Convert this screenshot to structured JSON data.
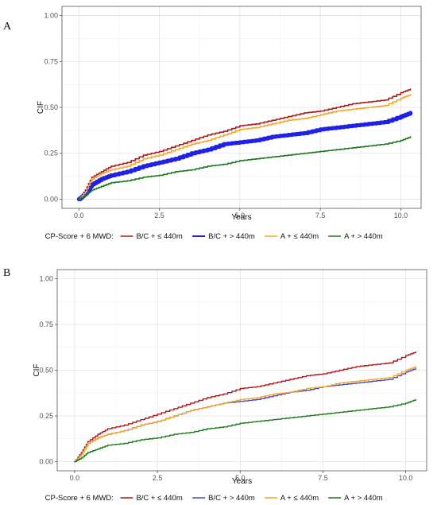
{
  "chart_data": [
    {
      "panel": "A",
      "type": "line",
      "xlabel": "Years",
      "ylabel": "CIF",
      "xlim": [
        0,
        10.5
      ],
      "ylim": [
        0,
        1.0
      ],
      "x_ticks": [
        "0.0",
        "2.5",
        "5.0",
        "7.5",
        "10.0"
      ],
      "y_ticks": [
        "0.00",
        "0.25",
        "0.50",
        "0.75",
        "1.00"
      ],
      "grid": true,
      "legend_title": "CP-Score + 6 MWD:",
      "legend_position": "bottom",
      "series": [
        {
          "name": "B/C + ≤ 440m",
          "color": "#b2181b",
          "width": 1.6,
          "x": [
            0,
            0.2,
            0.4,
            0.7,
            1.0,
            1.5,
            2.0,
            2.5,
            3.0,
            3.5,
            4.0,
            4.5,
            5.0,
            5.5,
            6.0,
            6.5,
            7.0,
            7.5,
            8.0,
            8.5,
            9.0,
            9.5,
            10.0,
            10.3
          ],
          "y": [
            0.0,
            0.05,
            0.12,
            0.15,
            0.18,
            0.2,
            0.24,
            0.26,
            0.29,
            0.32,
            0.35,
            0.37,
            0.4,
            0.41,
            0.43,
            0.45,
            0.47,
            0.48,
            0.5,
            0.52,
            0.53,
            0.54,
            0.58,
            0.6
          ]
        },
        {
          "name": "B/C + > 440m",
          "color": "#1f22e6",
          "width": 5,
          "x": [
            0,
            0.2,
            0.4,
            0.7,
            1.0,
            1.5,
            2.0,
            2.5,
            3.0,
            3.5,
            4.0,
            4.5,
            5.0,
            5.5,
            6.0,
            6.5,
            7.0,
            7.5,
            8.0,
            8.5,
            9.0,
            9.5,
            10.0,
            10.3
          ],
          "y": [
            0.0,
            0.03,
            0.08,
            0.11,
            0.13,
            0.15,
            0.18,
            0.2,
            0.22,
            0.25,
            0.27,
            0.3,
            0.31,
            0.32,
            0.34,
            0.35,
            0.36,
            0.38,
            0.39,
            0.4,
            0.41,
            0.42,
            0.45,
            0.47
          ]
        },
        {
          "name": "A + ≤ 440m",
          "color": "#f5a623",
          "width": 1.6,
          "x": [
            0,
            0.2,
            0.4,
            0.7,
            1.0,
            1.5,
            2.0,
            2.5,
            3.0,
            3.5,
            4.0,
            4.5,
            5.0,
            5.5,
            6.0,
            6.5,
            7.0,
            7.5,
            8.0,
            8.5,
            9.0,
            9.5,
            10.0,
            10.3
          ],
          "y": [
            0.0,
            0.04,
            0.11,
            0.14,
            0.16,
            0.18,
            0.22,
            0.24,
            0.27,
            0.3,
            0.32,
            0.35,
            0.38,
            0.39,
            0.41,
            0.43,
            0.44,
            0.46,
            0.48,
            0.49,
            0.5,
            0.51,
            0.55,
            0.57
          ]
        },
        {
          "name": "A + > 440m",
          "color": "#1b7a1b",
          "width": 1.6,
          "x": [
            0,
            0.2,
            0.4,
            0.7,
            1.0,
            1.5,
            2.0,
            2.5,
            3.0,
            3.5,
            4.0,
            4.5,
            5.0,
            5.5,
            6.0,
            6.5,
            7.0,
            7.5,
            8.0,
            8.5,
            9.0,
            9.5,
            10.0,
            10.3
          ],
          "y": [
            0.0,
            0.02,
            0.05,
            0.07,
            0.09,
            0.1,
            0.12,
            0.13,
            0.15,
            0.16,
            0.18,
            0.19,
            0.21,
            0.22,
            0.23,
            0.24,
            0.25,
            0.26,
            0.27,
            0.28,
            0.29,
            0.3,
            0.32,
            0.34
          ]
        }
      ]
    },
    {
      "panel": "B",
      "type": "line",
      "xlabel": "Years",
      "ylabel": "CIF",
      "xlim": [
        0,
        10.5
      ],
      "ylim": [
        0,
        1.0
      ],
      "x_ticks": [
        "0.0",
        "2.5",
        "5.0",
        "7.5",
        "10.0"
      ],
      "y_ticks": [
        "0.00",
        "0.25",
        "0.50",
        "0.75",
        "1.00"
      ],
      "grid": true,
      "legend_title": "CP-Score + 6 MWD:",
      "legend_position": "bottom",
      "series": [
        {
          "name": "B/C + ≤ 440m",
          "color": "#b2181b",
          "width": 1.4,
          "x": [
            0,
            0.2,
            0.4,
            0.7,
            1.0,
            1.5,
            2.0,
            2.5,
            3.0,
            3.5,
            4.0,
            4.5,
            5.0,
            5.5,
            6.0,
            6.5,
            7.0,
            7.5,
            8.0,
            8.5,
            9.0,
            9.5,
            10.0,
            10.3
          ],
          "y": [
            0.0,
            0.05,
            0.11,
            0.15,
            0.18,
            0.2,
            0.23,
            0.26,
            0.29,
            0.32,
            0.35,
            0.37,
            0.4,
            0.41,
            0.43,
            0.45,
            0.47,
            0.48,
            0.5,
            0.52,
            0.53,
            0.54,
            0.58,
            0.6
          ]
        },
        {
          "name": "B/C + > 440m",
          "color": "#4b4bd6",
          "width": 1.4,
          "x": [
            0,
            0.2,
            0.4,
            0.7,
            1.0,
            1.5,
            2.0,
            2.5,
            3.0,
            3.5,
            4.0,
            4.5,
            5.0,
            5.5,
            6.0,
            6.5,
            7.0,
            7.5,
            8.0,
            8.5,
            9.0,
            9.5,
            10.0,
            10.3
          ],
          "y": [
            0.0,
            0.04,
            0.1,
            0.13,
            0.15,
            0.17,
            0.2,
            0.22,
            0.25,
            0.28,
            0.3,
            0.32,
            0.33,
            0.34,
            0.36,
            0.38,
            0.39,
            0.41,
            0.42,
            0.43,
            0.44,
            0.45,
            0.49,
            0.51
          ]
        },
        {
          "name": "A + ≤ 440m",
          "color": "#f5a623",
          "width": 1.4,
          "x": [
            0,
            0.2,
            0.4,
            0.7,
            1.0,
            1.5,
            2.0,
            2.5,
            3.0,
            3.5,
            4.0,
            4.5,
            5.0,
            5.5,
            6.0,
            6.5,
            7.0,
            7.5,
            8.0,
            8.5,
            9.0,
            9.5,
            10.0,
            10.3
          ],
          "y": [
            0.0,
            0.04,
            0.1,
            0.13,
            0.15,
            0.17,
            0.2,
            0.22,
            0.25,
            0.28,
            0.3,
            0.32,
            0.34,
            0.35,
            0.37,
            0.38,
            0.4,
            0.41,
            0.43,
            0.44,
            0.45,
            0.46,
            0.5,
            0.52
          ]
        },
        {
          "name": "A + > 440m",
          "color": "#1b7a1b",
          "width": 1.4,
          "x": [
            0,
            0.2,
            0.4,
            0.7,
            1.0,
            1.5,
            2.0,
            2.5,
            3.0,
            3.5,
            4.0,
            4.5,
            5.0,
            5.5,
            6.0,
            6.5,
            7.0,
            7.5,
            8.0,
            8.5,
            9.0,
            9.5,
            10.0,
            10.3
          ],
          "y": [
            0.0,
            0.02,
            0.05,
            0.07,
            0.09,
            0.1,
            0.12,
            0.13,
            0.15,
            0.16,
            0.18,
            0.19,
            0.21,
            0.22,
            0.23,
            0.24,
            0.25,
            0.26,
            0.27,
            0.28,
            0.29,
            0.3,
            0.32,
            0.34
          ]
        }
      ]
    }
  ]
}
